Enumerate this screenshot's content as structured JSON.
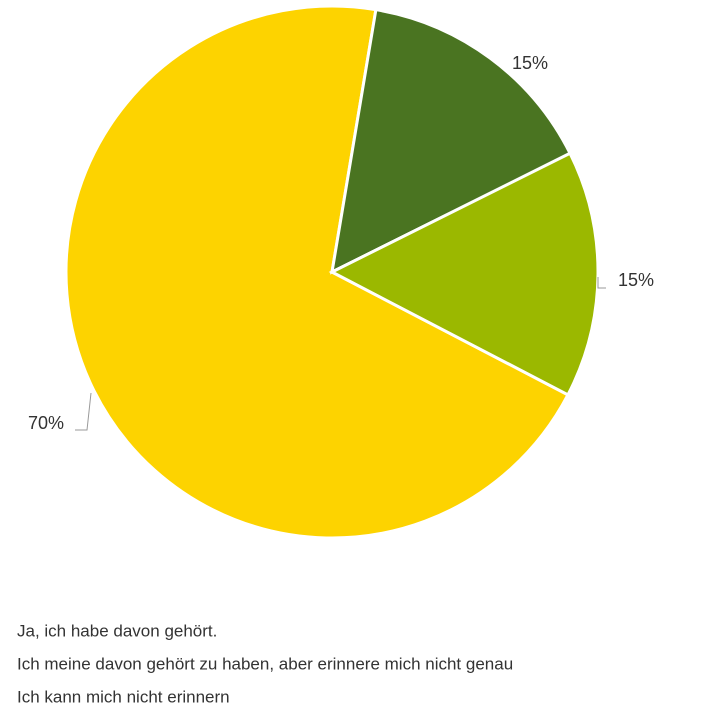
{
  "chart_data": {
    "type": "pie",
    "categories": [
      "Ja, ich habe davon gehört.",
      "Ich meine davon gehört zu haben, aber erinnere mich nicht genau",
      "Ich kann mich nicht erinnern"
    ],
    "values": [
      70,
      15,
      15
    ],
    "value_labels": [
      "70%",
      "15%",
      "15%"
    ],
    "colors": [
      "#fdd300",
      "#4a7421",
      "#9bb800"
    ]
  }
}
